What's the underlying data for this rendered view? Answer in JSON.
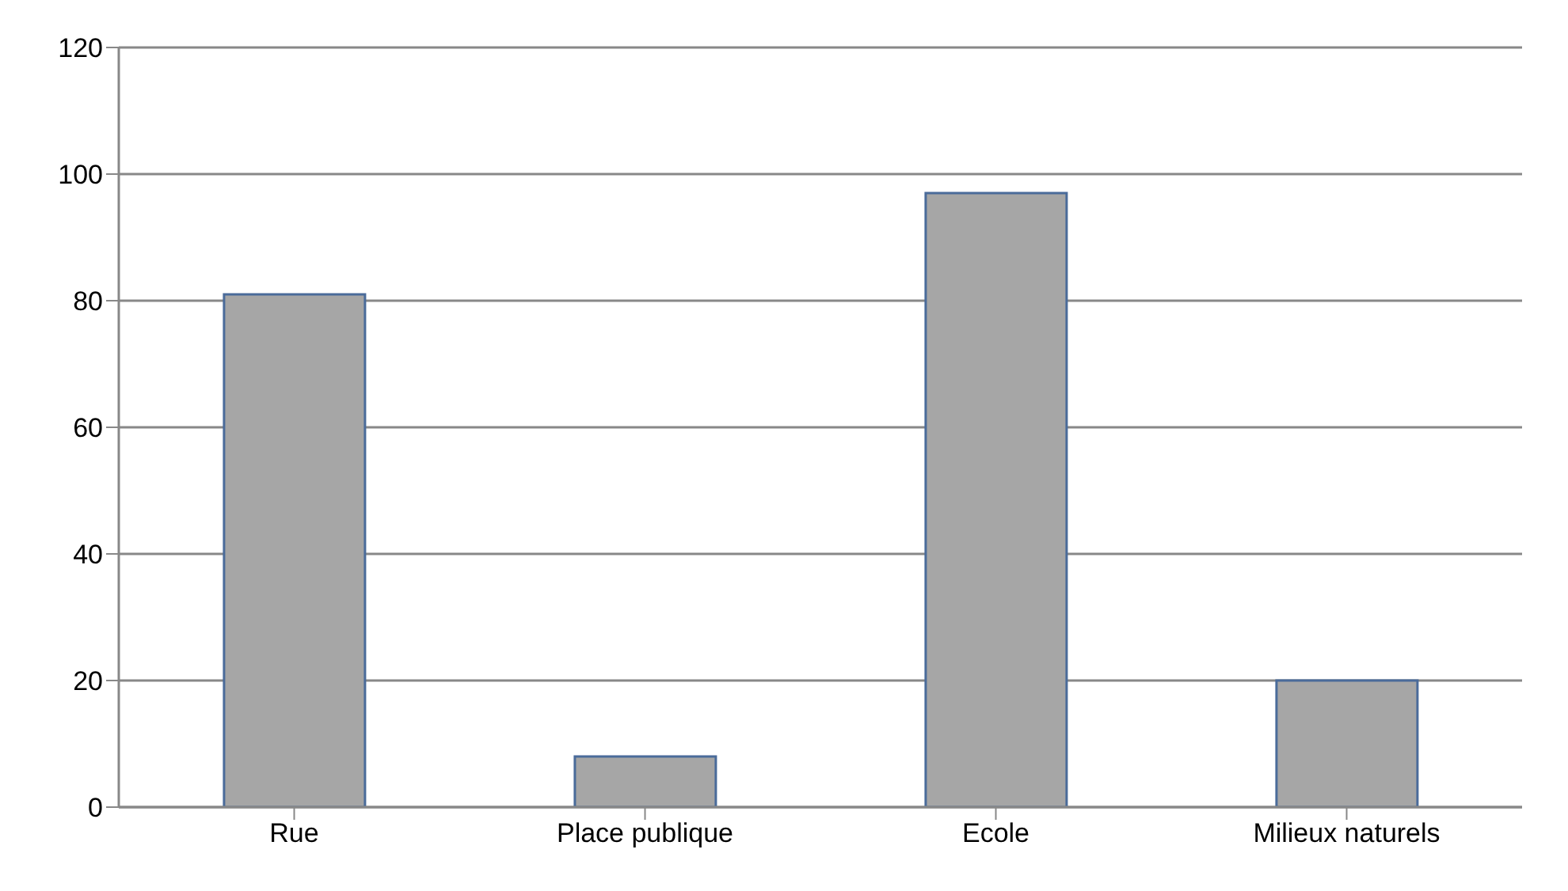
{
  "chart_data": {
    "type": "bar",
    "categories": [
      "Rue",
      "Place  publique",
      "Ecole",
      "Milieux naturels"
    ],
    "values": [
      81,
      8,
      97,
      20
    ],
    "color": "#a6a6a6",
    "ylim": [
      0,
      120
    ],
    "yticks": [
      0,
      20,
      40,
      60,
      80,
      100,
      120
    ],
    "grid": "y"
  }
}
